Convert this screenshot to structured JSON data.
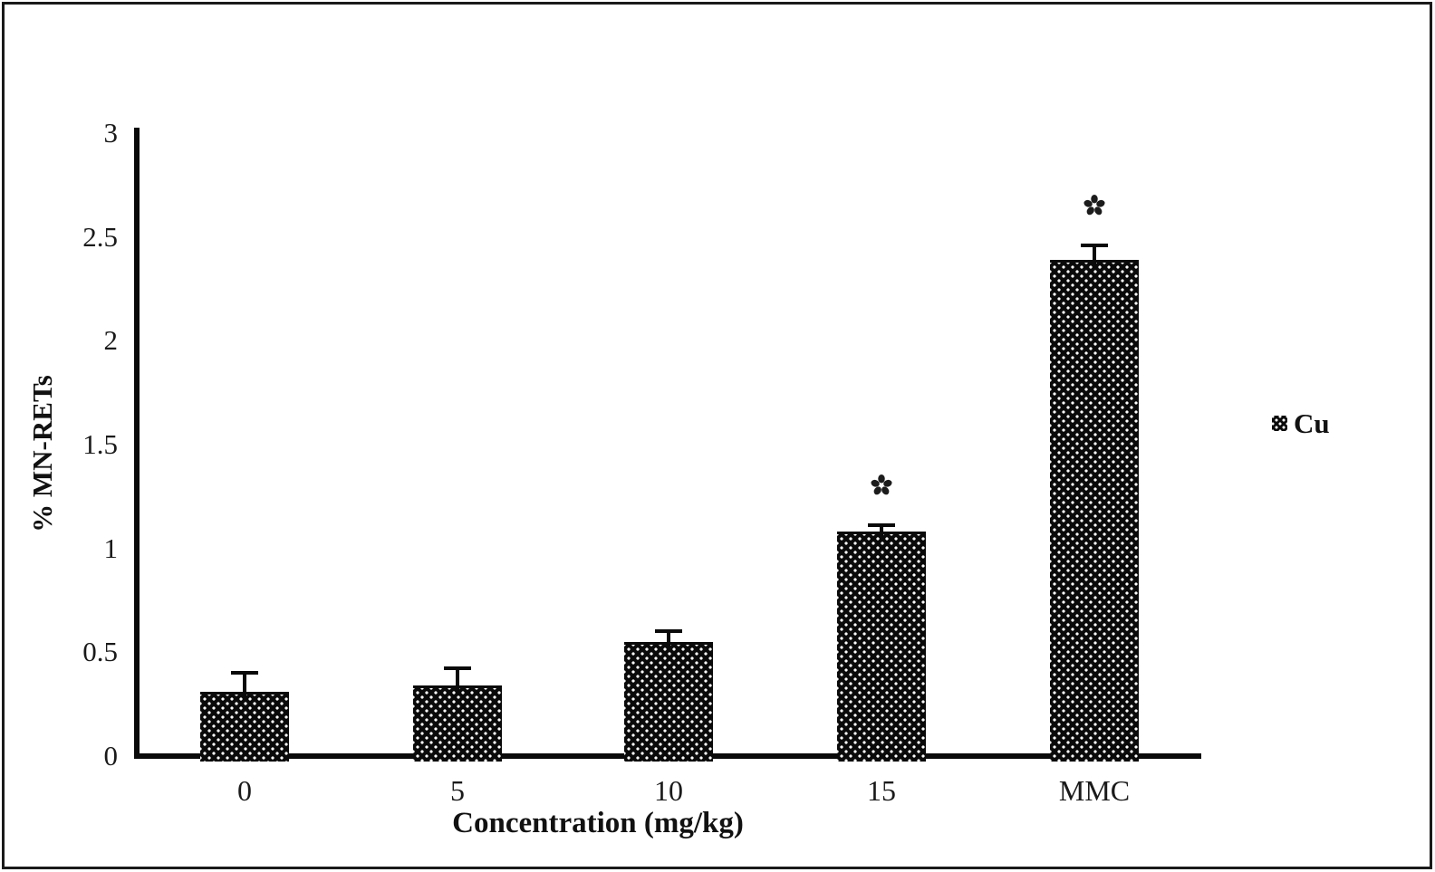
{
  "figure": {
    "background_color": "#ffffff",
    "frame_color": "#1a1a1a",
    "ink_color": "#0a0a0a"
  },
  "chart_data": {
    "type": "bar",
    "title": "",
    "xlabel": "Concentration (mg/kg)",
    "ylabel": "% MN-RETs",
    "categories": [
      "0",
      "5",
      "10",
      "15",
      "MMC"
    ],
    "series": [
      {
        "name": "Cu",
        "values": [
          0.31,
          0.34,
          0.55,
          1.08,
          2.39
        ],
        "errors_upper": [
          0.1,
          0.09,
          0.06,
          0.04,
          0.08
        ],
        "significant": [
          false,
          false,
          false,
          true,
          true
        ]
      }
    ],
    "significance_symbol": "✽",
    "ylim": [
      0,
      3
    ],
    "yticks": [
      0,
      0.5,
      1,
      1.5,
      2,
      2.5,
      3
    ],
    "ytick_labels": [
      "0",
      "0.5",
      "1",
      "1.5",
      "2",
      "2.5",
      "3"
    ],
    "grid": false,
    "error_bars": "upper only, capped",
    "bar_fill": {
      "pattern": "small white dots on black (dotted-diamond)",
      "background": "#0a0a0a",
      "dot_color": "#ffffff"
    },
    "legend": {
      "position": "right of plot, middle",
      "entries": [
        "Cu"
      ]
    }
  }
}
